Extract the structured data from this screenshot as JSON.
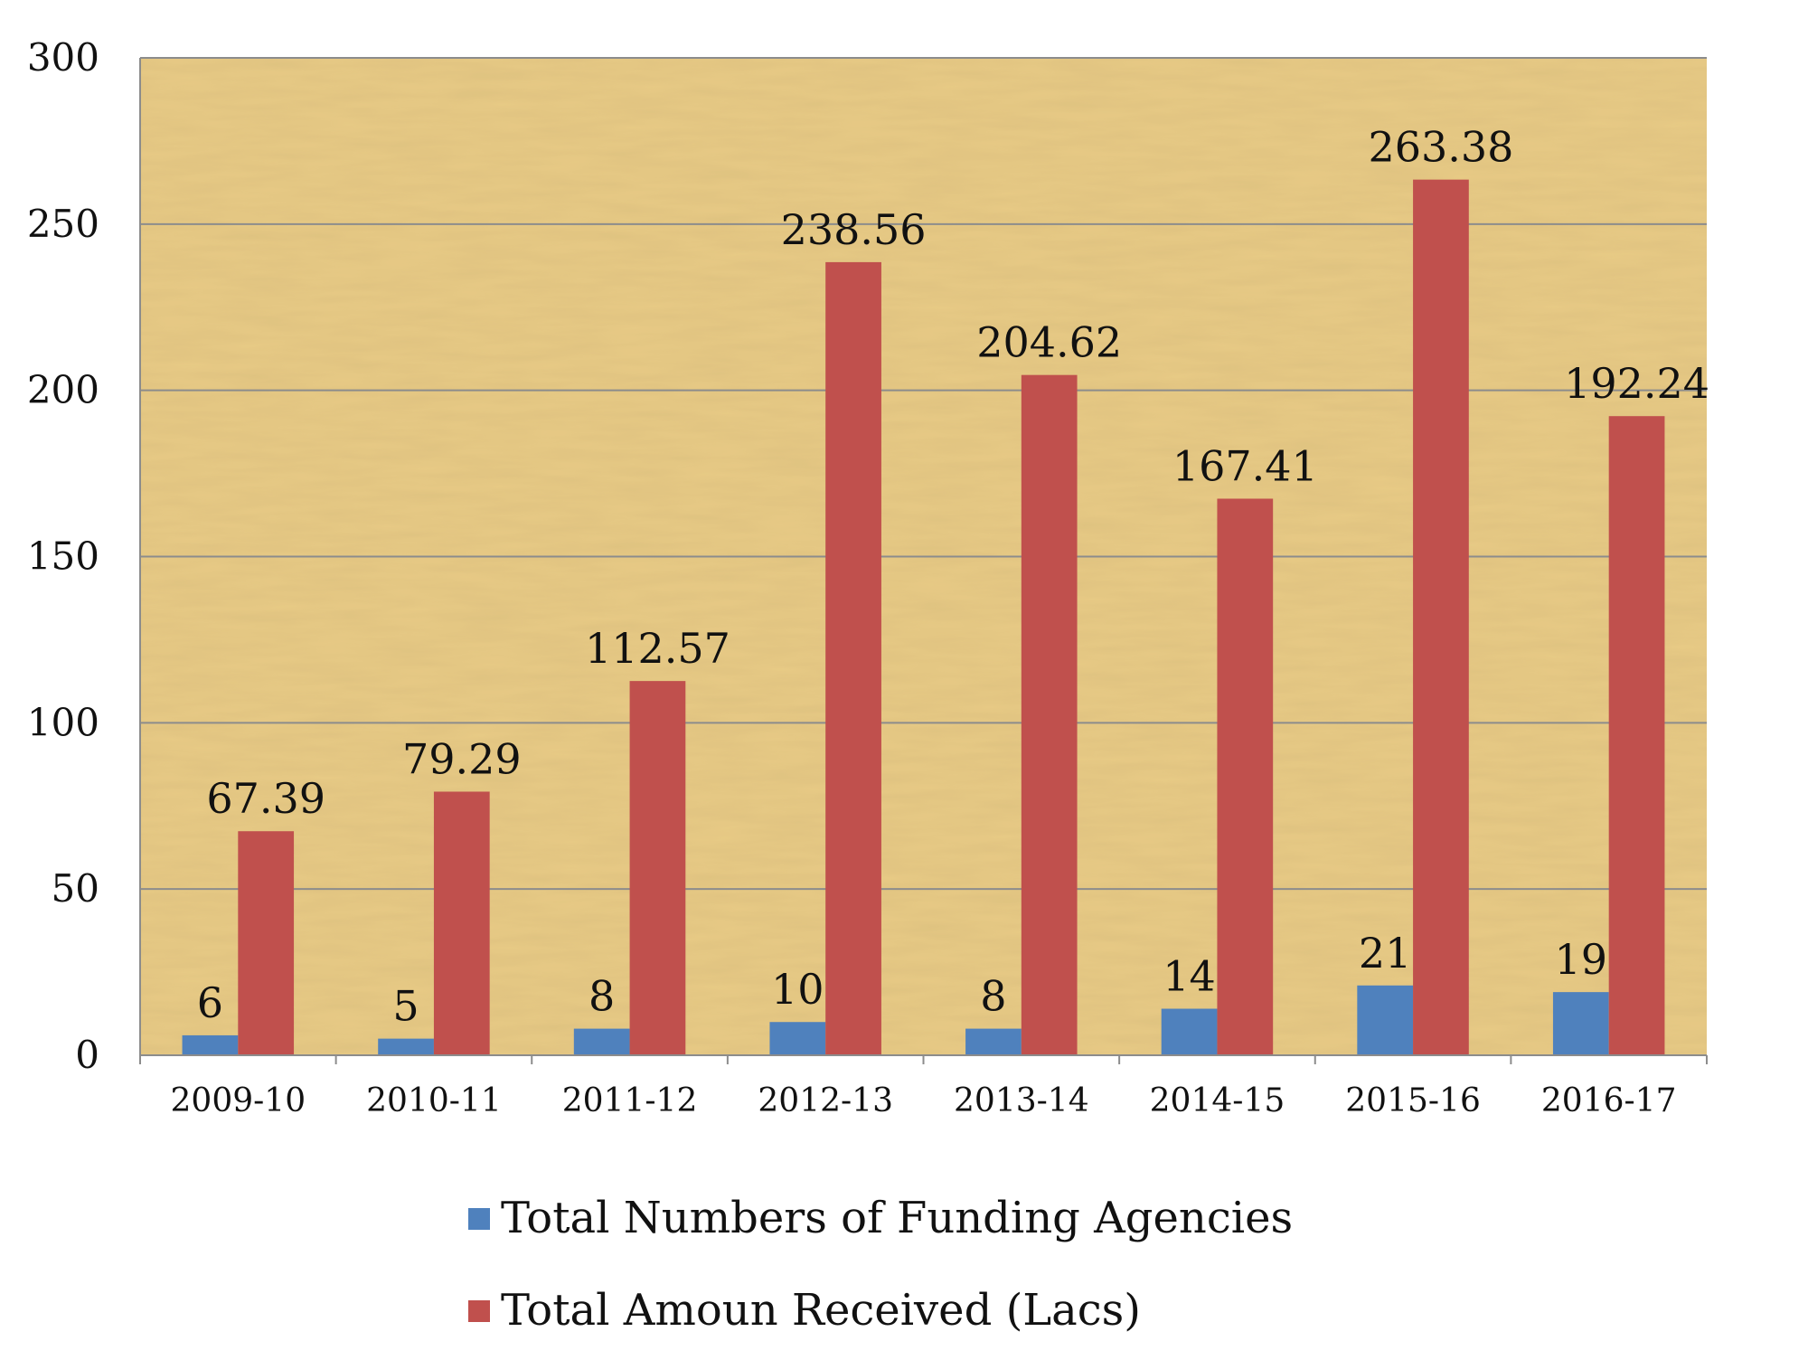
{
  "chart_data": {
    "type": "bar",
    "title": "",
    "xlabel": "",
    "ylabel": "",
    "categories": [
      "2009-10",
      "2010-11",
      "2011-12",
      "2012-13",
      "2013-14",
      "2014-15",
      "2015-16",
      "2016-17"
    ],
    "series": [
      {
        "name": "Total Numbers of Funding Agencies",
        "values": [
          6,
          5,
          8,
          10,
          8,
          14,
          21,
          19
        ],
        "labels": [
          "6",
          "5",
          "8",
          "10",
          "8",
          "14",
          "21",
          "19"
        ],
        "color": "#4F81BD"
      },
      {
        "name": "Total Amoun Received (Lacs)",
        "values": [
          67.39,
          79.29,
          112.57,
          238.56,
          204.62,
          167.41,
          263.38,
          192.24
        ],
        "labels": [
          "67.39",
          "79.29",
          "112.57",
          "238.56",
          "204.62",
          "167.41",
          "263.38",
          "192.24"
        ],
        "color": "#C0504D"
      }
    ],
    "ylim": [
      0,
      300
    ],
    "yticks": [
      0,
      50,
      100,
      150,
      200,
      250,
      300
    ],
    "ytick_labels": [
      "0",
      "50",
      "100",
      "150",
      "200",
      "250",
      "300"
    ],
    "grid": true,
    "legend_position": "bottom",
    "plot_background": "parchment texture",
    "plot_background_color": "#E8CB86",
    "gridline_color": "#8C8C8C"
  }
}
